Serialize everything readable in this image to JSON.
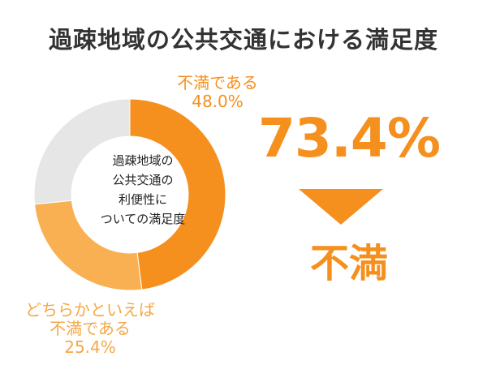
{
  "title": "過疎地域の公共交通における満足度",
  "center_label": [
    "過疎地域の",
    "公共交通の",
    "利便性に",
    "ついての満足度"
  ],
  "headline": {
    "percent": "73.4%",
    "word": "不満"
  },
  "colors": {
    "dissatisfied": "#f5901e",
    "somewhat_dissatisfied": "#f8b052",
    "other": "#e6e6e6",
    "text": "#333333"
  },
  "chart_data": {
    "type": "pie",
    "title": "",
    "slices": [
      {
        "name": "不満である",
        "value": 48.0,
        "value_label": "48.0%"
      },
      {
        "name": "どちらかといえば不満である",
        "value": 25.4,
        "value_label": "25.4%"
      },
      {
        "name": "",
        "value": 26.6
      }
    ]
  }
}
